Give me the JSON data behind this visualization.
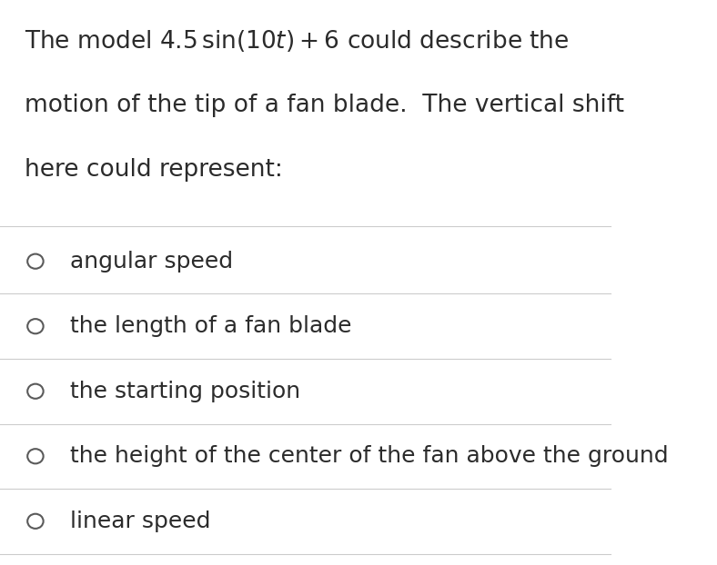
{
  "background_color": "#ffffff",
  "text_color": "#2b2b2b",
  "options": [
    "angular speed",
    "the length of a fan blade",
    "the starting position",
    "the height of the center of the fan above the ground",
    "linear speed"
  ],
  "circle_color": "#5a5a5a",
  "line_color": "#cccccc",
  "font_size_question": 19,
  "font_size_option": 18,
  "fig_width": 7.88,
  "fig_height": 6.22
}
